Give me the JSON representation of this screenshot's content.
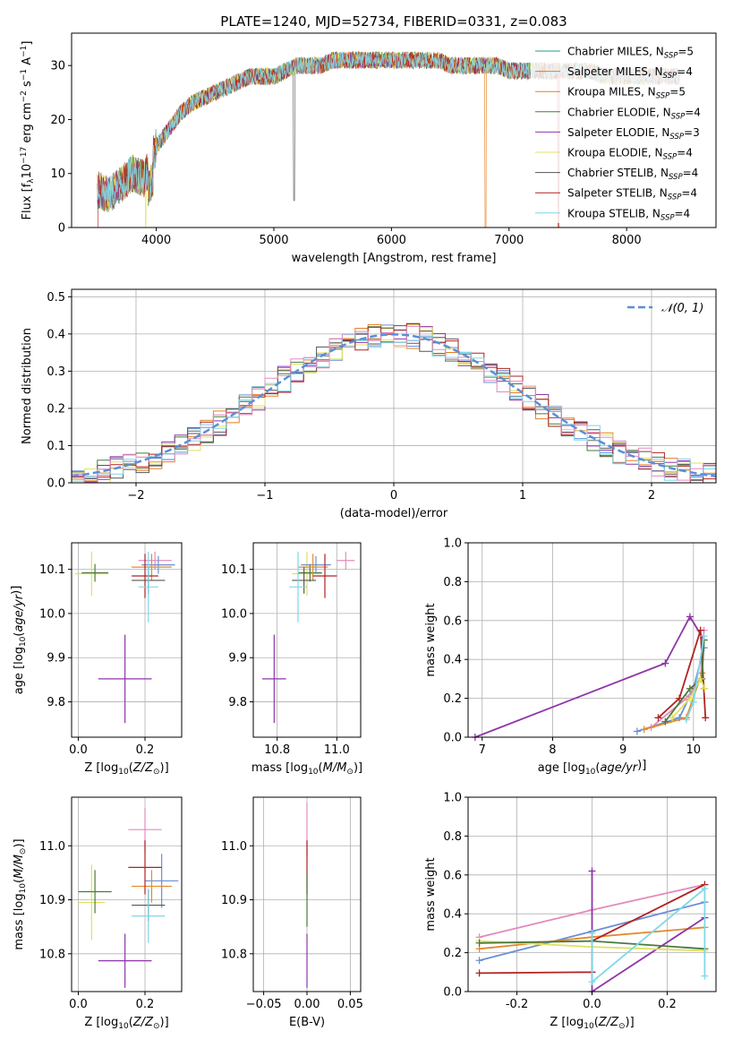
{
  "figure_title": "PLATE=1240, MJD=52734, FIBERID=0331, z=0.083",
  "colors": {
    "Chabrier MILES": "#1f9e89",
    "Salpeter MILES": "#e67e22",
    "Kroupa MILES": "#d9822b",
    "Chabrier ELODIE": "#4a7a3a",
    "Salpeter ELODIE": "#8e35a8",
    "Kroupa ELODIE": "#e0e060",
    "Chabrier STELIB": "#555555",
    "Salpeter STELIB": "#b22222",
    "Kroupa STELIB": "#7fd8e8",
    "line_blue": "#6a8fd8",
    "line_pink": "#e38bbd",
    "line_orange": "#e38a2b",
    "line_yellowgreen": "#b8d85a",
    "normal_line": "#5b8fd6"
  },
  "chart_data": [
    {
      "id": "spectrum",
      "type": "line",
      "title": "PLATE=1240, MJD=52734, FIBERID=0331, z=0.083",
      "xlabel": "wavelength [Angstrom, rest frame]",
      "ylabel": "Flux [f_λ 10^-17 erg cm^-2 s^-1 A^-1]",
      "xlim": [
        3280,
        8760
      ],
      "ylim": [
        0,
        36
      ],
      "xticks": [
        4000,
        5000,
        6000,
        7000,
        8000
      ],
      "yticks": [
        0,
        10,
        20,
        30
      ],
      "legend_position": "right",
      "legend": [
        "Chabrier MILES, N_SSP=5",
        "Salpeter MILES, N_SSP=4",
        "Kroupa MILES, N_SSP=5",
        "Chabrier ELODIE, N_SSP=4",
        "Salpeter ELODIE, N_SSP=3",
        "Kroupa ELODIE, N_SSP=4",
        "Chabrier STELIB, N_SSP=4",
        "Salpeter STELIB, N_SSP=4",
        "Kroupa STELIB, N_SSP=4"
      ],
      "envelope": {
        "x": [
          3500,
          3600,
          3700,
          3800,
          3900,
          4000,
          4100,
          4200,
          4300,
          4400,
          4500,
          4600,
          4700,
          4800,
          4900,
          5000,
          5100,
          5200,
          5300,
          5400,
          5500,
          5600,
          5700,
          5800,
          5900,
          6000,
          6100,
          6200,
          6300,
          6400,
          6500,
          6600,
          6700,
          6800,
          6900,
          7000,
          7100,
          7200,
          7300,
          7400,
          7500,
          7600,
          7700,
          7800,
          7900,
          8000,
          8100,
          8200,
          8300,
          8400
        ],
        "y": [
          7,
          6,
          8,
          10,
          9,
          15,
          18,
          21,
          23,
          24,
          25,
          26,
          27,
          28,
          28,
          28,
          29,
          30,
          30,
          30,
          31,
          31,
          31,
          31,
          31,
          31,
          31,
          31,
          31,
          31,
          30,
          30,
          30,
          30,
          30,
          29,
          29,
          29,
          29,
          29,
          29,
          29,
          29,
          28,
          28,
          28,
          28,
          28,
          28,
          28
        ]
      }
    },
    {
      "id": "residuals",
      "type": "histogram",
      "xlabel": "(data-model)/error",
      "ylabel": "Normed distribution",
      "xlim": [
        -2.5,
        2.5
      ],
      "ylim": [
        0,
        0.52
      ],
      "xticks": [
        -2,
        -1,
        0,
        1,
        2
      ],
      "yticks": [
        0.0,
        0.1,
        0.2,
        0.3,
        0.4,
        0.5
      ],
      "grid": true,
      "legend_position": "top-right",
      "legend": [
        "𝒩(0, 1)"
      ],
      "normal_curve": {
        "mean": 0,
        "sigma": 1
      }
    },
    {
      "id": "age_vs_Z",
      "type": "scatter",
      "xlabel": "Z [log10(Z/Z⊙)]",
      "ylabel": "age [log10(age/yr)]",
      "xlim": [
        -0.02,
        0.31
      ],
      "ylim": [
        9.72,
        10.16
      ],
      "xticks": [
        0.0,
        0.2
      ],
      "yticks": [
        9.8,
        9.9,
        10.0,
        10.1
      ],
      "grid": true,
      "points": [
        {
          "x": 0.14,
          "y": 9.852,
          "xerr": 0.08,
          "yerr": 0.1,
          "color": "#8e35a8"
        },
        {
          "x": 0.04,
          "y": 10.09,
          "xerr": 0.05,
          "yerr": 0.05,
          "color": "#e0e060"
        },
        {
          "x": 0.05,
          "y": 10.092,
          "xerr": 0.04,
          "yerr": 0.02,
          "color": "#4a7a3a"
        },
        {
          "x": 0.23,
          "y": 10.12,
          "xerr": 0.05,
          "yerr": 0.02,
          "color": "#e38bbd"
        },
        {
          "x": 0.24,
          "y": 10.11,
          "xerr": 0.05,
          "yerr": 0.02,
          "color": "#6a8fd8"
        },
        {
          "x": 0.22,
          "y": 10.105,
          "xerr": 0.06,
          "yerr": 0.03,
          "color": "#e38a2b"
        },
        {
          "x": 0.2,
          "y": 10.085,
          "xerr": 0.04,
          "yerr": 0.05,
          "color": "#b22222"
        },
        {
          "x": 0.21,
          "y": 10.075,
          "xerr": 0.05,
          "yerr": 0.03,
          "color": "#555555"
        },
        {
          "x": 0.21,
          "y": 10.06,
          "xerr": 0.03,
          "yerr": 0.08,
          "color": "#7fd8e8"
        }
      ]
    },
    {
      "id": "age_vs_mass",
      "type": "scatter",
      "xlabel": "mass [log10(M/M⊙)]",
      "ylabel": "",
      "xlim": [
        10.72,
        11.08
      ],
      "ylim": [
        9.72,
        10.16
      ],
      "xticks": [
        10.8,
        11.0
      ],
      "yticks": [
        9.8,
        9.9,
        10.0,
        10.1
      ],
      "grid": true,
      "points": [
        {
          "x": 10.79,
          "y": 9.852,
          "xerr": 0.04,
          "yerr": 0.1,
          "color": "#8e35a8"
        },
        {
          "x": 10.9,
          "y": 10.09,
          "xerr": 0.05,
          "yerr": 0.05,
          "color": "#e0e060"
        },
        {
          "x": 10.91,
          "y": 10.092,
          "xerr": 0.04,
          "yerr": 0.02,
          "color": "#4a7a3a"
        },
        {
          "x": 11.03,
          "y": 10.12,
          "xerr": 0.03,
          "yerr": 0.02,
          "color": "#e38bbd"
        },
        {
          "x": 10.93,
          "y": 10.11,
          "xerr": 0.05,
          "yerr": 0.02,
          "color": "#6a8fd8"
        },
        {
          "x": 10.92,
          "y": 10.105,
          "xerr": 0.05,
          "yerr": 0.03,
          "color": "#e38a2b"
        },
        {
          "x": 10.96,
          "y": 10.085,
          "xerr": 0.04,
          "yerr": 0.05,
          "color": "#b22222"
        },
        {
          "x": 10.89,
          "y": 10.075,
          "xerr": 0.04,
          "yerr": 0.03,
          "color": "#555555"
        },
        {
          "x": 10.87,
          "y": 10.06,
          "xerr": 0.03,
          "yerr": 0.08,
          "color": "#7fd8e8"
        }
      ]
    },
    {
      "id": "weight_vs_age",
      "type": "line",
      "xlabel": "age [log10(age/yr)]",
      "ylabel": "mass weight",
      "xlim": [
        6.8,
        10.32
      ],
      "ylim": [
        0,
        1.0
      ],
      "xticks": [
        7,
        8,
        9,
        10
      ],
      "yticks": [
        0.0,
        0.2,
        0.4,
        0.6,
        0.8,
        1.0
      ],
      "grid": true,
      "series": [
        {
          "color": "#8e35a8",
          "x": [
            6.9,
            9.6,
            9.95,
            10.15
          ],
          "y": [
            0.0,
            0.38,
            0.62,
            0.5
          ]
        },
        {
          "color": "#6a8fd8",
          "x": [
            9.2,
            9.8,
            10.0,
            10.15
          ],
          "y": [
            0.03,
            0.1,
            0.25,
            0.46
          ]
        },
        {
          "color": "#e38bbd",
          "x": [
            9.4,
            9.9,
            10.1,
            10.15
          ],
          "y": [
            0.05,
            0.2,
            0.3,
            0.55
          ]
        },
        {
          "color": "#e38a2b",
          "x": [
            9.3,
            9.9,
            10.12,
            10.15
          ],
          "y": [
            0.04,
            0.1,
            0.33,
            0.25
          ]
        },
        {
          "color": "#b22222",
          "x": [
            9.5,
            9.8,
            10.1,
            10.17
          ],
          "y": [
            0.1,
            0.2,
            0.55,
            0.1
          ]
        },
        {
          "color": "#4a7a3a",
          "x": [
            9.6,
            9.95,
            10.12,
            10.15
          ],
          "y": [
            0.08,
            0.25,
            0.3,
            0.5
          ]
        },
        {
          "color": "#e0e060",
          "x": [
            9.7,
            9.95,
            10.1,
            10.16
          ],
          "y": [
            0.1,
            0.2,
            0.3,
            0.25
          ]
        },
        {
          "color": "#7fd8e8",
          "x": [
            9.9,
            10.0,
            10.15
          ],
          "y": [
            0.09,
            0.18,
            0.52
          ]
        }
      ]
    },
    {
      "id": "mass_vs_Z",
      "type": "scatter",
      "xlabel": "Z [log10(Z/Z⊙)]",
      "ylabel": "mass [log10(M/M⊙)]",
      "xlim": [
        -0.02,
        0.31
      ],
      "ylim": [
        10.73,
        11.09
      ],
      "xticks": [
        0.0,
        0.2
      ],
      "yticks": [
        10.8,
        10.9,
        11.0
      ],
      "grid": true,
      "points": [
        {
          "x": 0.14,
          "y": 10.787,
          "xerr": 0.08,
          "yerr": 0.05,
          "color": "#8e35a8"
        },
        {
          "x": 0.04,
          "y": 10.895,
          "xerr": 0.04,
          "yerr": 0.07,
          "color": "#e0e060"
        },
        {
          "x": 0.05,
          "y": 10.915,
          "xerr": 0.05,
          "yerr": 0.04,
          "color": "#4a7a3a"
        },
        {
          "x": 0.2,
          "y": 11.03,
          "xerr": 0.05,
          "yerr": 0.04,
          "color": "#e38bbd"
        },
        {
          "x": 0.25,
          "y": 10.935,
          "xerr": 0.05,
          "yerr": 0.05,
          "color": "#6a8fd8"
        },
        {
          "x": 0.22,
          "y": 10.925,
          "xerr": 0.06,
          "yerr": 0.03,
          "color": "#e38a2b"
        },
        {
          "x": 0.2,
          "y": 10.96,
          "xerr": 0.05,
          "yerr": 0.05,
          "color": "#b22222"
        },
        {
          "x": 0.21,
          "y": 10.89,
          "xerr": 0.05,
          "yerr": 0.03,
          "color": "#555555"
        },
        {
          "x": 0.21,
          "y": 10.87,
          "xerr": 0.05,
          "yerr": 0.05,
          "color": "#7fd8e8"
        }
      ]
    },
    {
      "id": "mass_vs_ebv",
      "type": "scatter",
      "xlabel": "E(B-V)",
      "ylabel": "",
      "xlim": [
        -0.062,
        0.062
      ],
      "ylim": [
        10.73,
        11.09
      ],
      "xticks": [
        -0.05,
        0.0,
        0.05
      ],
      "yticks": [
        10.8,
        10.9,
        11.0
      ],
      "grid": true,
      "points": [
        {
          "x": 0.0,
          "y": 11.03,
          "yerr": 0.05,
          "color": "#e38bbd"
        },
        {
          "x": 0.0,
          "y": 10.96,
          "yerr": 0.05,
          "color": "#b22222"
        },
        {
          "x": 0.0,
          "y": 10.9,
          "yerr": 0.05,
          "color": "#4a7a3a"
        },
        {
          "x": 0.0,
          "y": 10.787,
          "yerr": 0.05,
          "color": "#8e35a8"
        }
      ]
    },
    {
      "id": "weight_vs_Z",
      "type": "line",
      "xlabel": "Z [log10(Z/Z⊙)]",
      "ylabel": "mass weight",
      "xlim": [
        -0.33,
        0.33
      ],
      "ylim": [
        0,
        1.0
      ],
      "xticks": [
        -0.2,
        0.0,
        0.2
      ],
      "yticks": [
        0.0,
        0.2,
        0.4,
        0.6,
        0.8,
        1.0
      ],
      "grid": true,
      "series": [
        {
          "color": "#e38bbd",
          "x": [
            -0.3,
            0.0,
            0.3
          ],
          "y": [
            0.28,
            0.42,
            0.55
          ]
        },
        {
          "color": "#6a8fd8",
          "x": [
            -0.3,
            0.0,
            0.3
          ],
          "y": [
            0.16,
            0.31,
            0.46
          ]
        },
        {
          "color": "#e38a2b",
          "x": [
            -0.3,
            0.0,
            0.3
          ],
          "y": [
            0.22,
            0.28,
            0.33
          ]
        },
        {
          "color": "#b22222",
          "x": [
            -0.3,
            0.0,
            0.0,
            0.3
          ],
          "y": [
            0.095,
            0.1,
            0.26,
            0.55
          ]
        },
        {
          "color": "#8e35a8",
          "x": [
            0.0,
            0.0,
            0.3
          ],
          "y": [
            0.62,
            0.0,
            0.38
          ]
        },
        {
          "color": "#e0e060",
          "x": [
            -0.3,
            0.0,
            0.3
          ],
          "y": [
            0.26,
            0.23,
            0.21
          ]
        },
        {
          "color": "#4a7a3a",
          "x": [
            -0.3,
            0.0,
            0.3
          ],
          "y": [
            0.25,
            0.26,
            0.22
          ]
        },
        {
          "color": "#7fd8e8",
          "x": [
            0.0,
            0.0,
            0.3,
            0.3
          ],
          "y": [
            0.3,
            0.05,
            0.53,
            0.08
          ]
        }
      ]
    }
  ]
}
